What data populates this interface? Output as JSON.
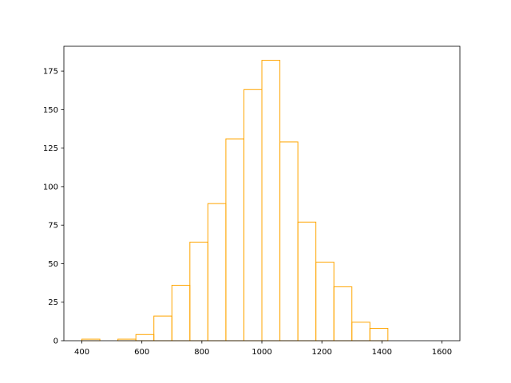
{
  "chart_data": {
    "type": "histogram",
    "bins": [
      400,
      460,
      520,
      580,
      640,
      700,
      760,
      820,
      880,
      940,
      1000,
      1060,
      1120,
      1180,
      1240,
      1300,
      1360,
      1420,
      1480,
      1540,
      1600
    ],
    "values": [
      1,
      0,
      1,
      4,
      16,
      36,
      64,
      89,
      131,
      163,
      182,
      129,
      77,
      51,
      35,
      12,
      8,
      0,
      0,
      0
    ],
    "color": "orange",
    "xlim": [
      340,
      1660
    ],
    "ylim": [
      0,
      191.1
    ],
    "xticks": [
      400,
      600,
      800,
      1000,
      1200,
      1400,
      1600
    ],
    "yticks": [
      0,
      25,
      50,
      75,
      100,
      125,
      150,
      175
    ]
  }
}
